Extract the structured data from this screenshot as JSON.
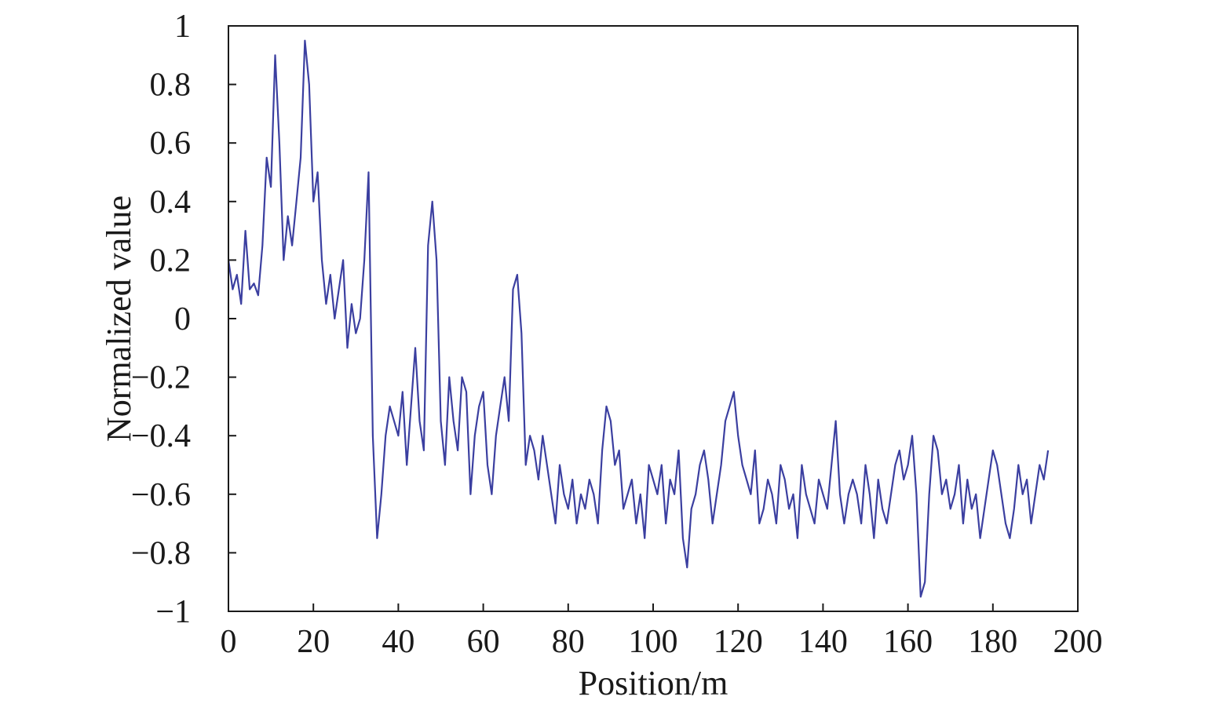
{
  "chart_data": {
    "type": "line",
    "title": "",
    "xlabel": "Position/m",
    "ylabel": "Normalized value",
    "xlim": [
      0,
      200
    ],
    "ylim": [
      -1,
      1
    ],
    "grid": false,
    "legend": "none",
    "x_ticks": [
      0,
      20,
      40,
      60,
      80,
      100,
      120,
      140,
      160,
      180,
      200
    ],
    "x_tick_labels": [
      "0",
      "20",
      "40",
      "60",
      "80",
      "100",
      "120",
      "140",
      "160",
      "180",
      "200"
    ],
    "y_ticks": [
      1,
      0.8,
      0.6,
      0.4,
      0.2,
      0,
      -0.2,
      -0.4,
      -0.6,
      -0.8,
      -1
    ],
    "y_tick_labels": [
      "1",
      "0.8",
      "0.6",
      "0.4",
      "0.2",
      "0",
      "−0.2",
      "−0.4",
      "−0.6",
      "−0.8",
      "−1"
    ],
    "series": [
      {
        "color": "#3b3fa0",
        "x": [
          0,
          1,
          2,
          3,
          4,
          5,
          6,
          7,
          8,
          9,
          10,
          11,
          12,
          13,
          14,
          15,
          16,
          17,
          18,
          19,
          20,
          21,
          22,
          23,
          24,
          25,
          26,
          27,
          28,
          29,
          30,
          31,
          32,
          33,
          34,
          35,
          36,
          37,
          38,
          39,
          40,
          41,
          42,
          43,
          44,
          45,
          46,
          47,
          48,
          49,
          50,
          51,
          52,
          53,
          54,
          55,
          56,
          57,
          58,
          59,
          60,
          61,
          62,
          63,
          64,
          65,
          66,
          67,
          68,
          69,
          70,
          71,
          72,
          73,
          74,
          75,
          76,
          77,
          78,
          79,
          80,
          81,
          82,
          83,
          84,
          85,
          86,
          87,
          88,
          89,
          90,
          91,
          92,
          93,
          94,
          95,
          96,
          97,
          98,
          99,
          100,
          101,
          102,
          103,
          104,
          105,
          106,
          107,
          108,
          109,
          110,
          111,
          112,
          113,
          114,
          115,
          116,
          117,
          118,
          119,
          120,
          121,
          122,
          123,
          124,
          125,
          126,
          127,
          128,
          129,
          130,
          131,
          132,
          133,
          134,
          135,
          136,
          137,
          138,
          139,
          140,
          141,
          142,
          143,
          144,
          145,
          146,
          147,
          148,
          149,
          150,
          151,
          152,
          153,
          154,
          155,
          156,
          157,
          158,
          159,
          160,
          161,
          162,
          163,
          164,
          165,
          166,
          167,
          168,
          169,
          170,
          171,
          172,
          173,
          174,
          175,
          176,
          177,
          178,
          179,
          180,
          181,
          182,
          183,
          184,
          185,
          186,
          187,
          188,
          189,
          190,
          191,
          192,
          193
        ],
        "y": [
          0.2,
          0.1,
          0.15,
          0.05,
          0.3,
          0.1,
          0.12,
          0.08,
          0.25,
          0.55,
          0.45,
          0.9,
          0.6,
          0.2,
          0.35,
          0.25,
          0.4,
          0.55,
          0.95,
          0.8,
          0.4,
          0.5,
          0.2,
          0.05,
          0.15,
          0.0,
          0.1,
          0.2,
          -0.1,
          0.05,
          -0.05,
          0.0,
          0.2,
          0.5,
          -0.4,
          -0.75,
          -0.6,
          -0.4,
          -0.3,
          -0.35,
          -0.4,
          -0.25,
          -0.5,
          -0.3,
          -0.1,
          -0.35,
          -0.45,
          0.25,
          0.4,
          0.2,
          -0.35,
          -0.5,
          -0.2,
          -0.35,
          -0.45,
          -0.2,
          -0.25,
          -0.6,
          -0.4,
          -0.3,
          -0.25,
          -0.5,
          -0.6,
          -0.4,
          -0.3,
          -0.2,
          -0.35,
          0.1,
          0.15,
          -0.05,
          -0.5,
          -0.4,
          -0.45,
          -0.55,
          -0.4,
          -0.5,
          -0.6,
          -0.7,
          -0.5,
          -0.6,
          -0.65,
          -0.55,
          -0.7,
          -0.6,
          -0.65,
          -0.55,
          -0.6,
          -0.7,
          -0.45,
          -0.3,
          -0.35,
          -0.5,
          -0.45,
          -0.65,
          -0.6,
          -0.55,
          -0.7,
          -0.6,
          -0.75,
          -0.5,
          -0.55,
          -0.6,
          -0.5,
          -0.7,
          -0.55,
          -0.6,
          -0.45,
          -0.75,
          -0.85,
          -0.65,
          -0.6,
          -0.5,
          -0.45,
          -0.55,
          -0.7,
          -0.6,
          -0.5,
          -0.35,
          -0.3,
          -0.25,
          -0.4,
          -0.5,
          -0.55,
          -0.6,
          -0.45,
          -0.7,
          -0.65,
          -0.55,
          -0.6,
          -0.7,
          -0.5,
          -0.55,
          -0.65,
          -0.6,
          -0.75,
          -0.5,
          -0.6,
          -0.65,
          -0.7,
          -0.55,
          -0.6,
          -0.65,
          -0.5,
          -0.35,
          -0.6,
          -0.7,
          -0.6,
          -0.55,
          -0.6,
          -0.7,
          -0.5,
          -0.6,
          -0.75,
          -0.55,
          -0.65,
          -0.7,
          -0.6,
          -0.5,
          -0.45,
          -0.55,
          -0.5,
          -0.4,
          -0.6,
          -0.95,
          -0.9,
          -0.6,
          -0.4,
          -0.45,
          -0.6,
          -0.55,
          -0.65,
          -0.6,
          -0.5,
          -0.7,
          -0.55,
          -0.65,
          -0.6,
          -0.75,
          -0.65,
          -0.55,
          -0.45,
          -0.5,
          -0.6,
          -0.7,
          -0.75,
          -0.65,
          -0.5,
          -0.6,
          -0.55,
          -0.7,
          -0.6,
          -0.5,
          -0.55,
          -0.45
        ]
      }
    ]
  }
}
